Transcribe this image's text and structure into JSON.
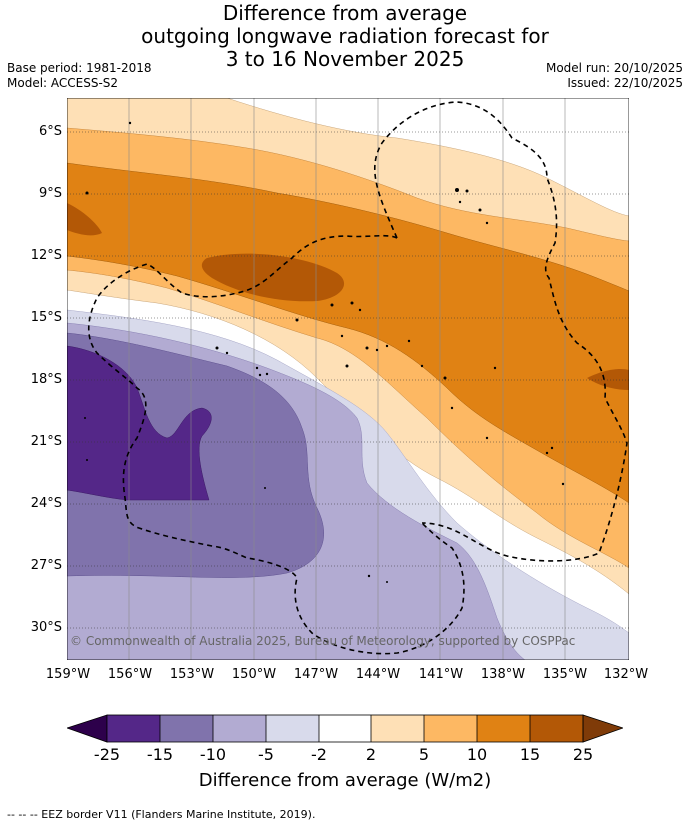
{
  "title": {
    "line1": "Difference from average",
    "line2": "outgoing longwave radiation forecast for",
    "line3": "3 to 16 November 2025"
  },
  "meta": {
    "base_period": "Base period: 1981-2018",
    "model": "Model: ACCESS-S2",
    "model_run": "Model run: 20/10/2025",
    "issued": "Issued: 22/10/2025"
  },
  "map": {
    "lat_labels": [
      "6°S",
      "9°S",
      "12°S",
      "15°S",
      "18°S",
      "21°S",
      "24°S",
      "27°S",
      "30°S"
    ],
    "lon_labels": [
      "159°W",
      "156°W",
      "153°W",
      "150°W",
      "147°W",
      "144°W",
      "141°W",
      "138°W",
      "135°W",
      "132°W"
    ],
    "credit": "© Commonwealth of Australia 2025, Bureau of Meteorology, supported by COSPPac"
  },
  "colorbar": {
    "title": "Difference from average (W/m2)",
    "tick_labels": [
      "-25",
      "-15",
      "-10",
      "-5",
      "-2",
      "2",
      "5",
      "10",
      "15",
      "25"
    ],
    "colors": {
      "below_min": "#2d004b",
      "n25_n15": "#542788",
      "n15_n10": "#8073ac",
      "n10_n5": "#b2abd2",
      "n5_n2": "#d8daeb",
      "n2_2": "#ffffff",
      "p2_5": "#fee0b6",
      "p5_10": "#fdb863",
      "p10_15": "#e08214",
      "p15_25": "#b35806",
      "above_max": "#7f3b08"
    }
  },
  "legend": "--  --  -- EEZ border V11 (Flanders Marine Institute, 2019)."
}
